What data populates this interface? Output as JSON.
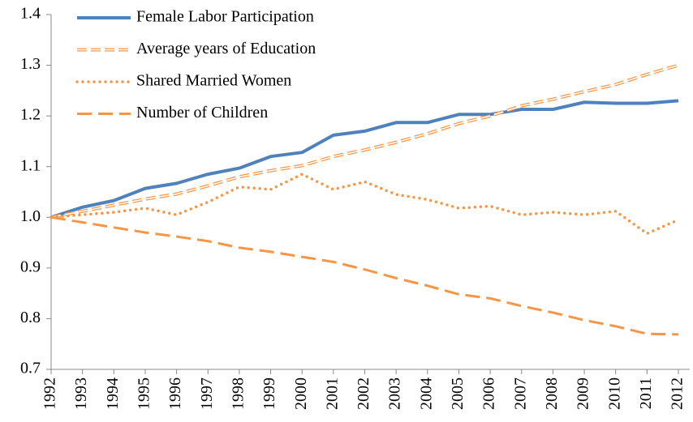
{
  "chart_data": {
    "type": "line",
    "categories": [
      "1992",
      "1993",
      "1994",
      "1995",
      "1996",
      "1997",
      "1998",
      "1999",
      "2000",
      "2001",
      "2002",
      "2003",
      "2004",
      "2005",
      "2006",
      "2007",
      "2008",
      "2009",
      "2010",
      "2011",
      "2012"
    ],
    "ylim": [
      0.7,
      1.4
    ],
    "yticks": [
      0.7,
      0.8,
      0.9,
      {
        "value": 1,
        "label": "1.0"
      },
      1.1,
      1.2,
      1.3,
      1.4
    ],
    "legend": "upper left",
    "series": [
      {
        "name": "Female Labor Participation",
        "color": "#4f81bd",
        "style": "solid",
        "values": [
          1.0,
          1.02,
          1.033,
          1.057,
          1.067,
          1.085,
          1.097,
          1.12,
          1.128,
          1.162,
          1.17,
          1.187,
          1.187,
          1.203,
          1.203,
          1.213,
          1.213,
          1.227,
          1.225,
          1.225,
          1.23
        ]
      },
      {
        "name": "Average years of Education",
        "color": "#f79646",
        "style": "double",
        "values": [
          1.0,
          1.012,
          1.024,
          1.036,
          1.046,
          1.062,
          1.08,
          1.092,
          1.102,
          1.12,
          1.133,
          1.148,
          1.165,
          1.185,
          1.2,
          1.22,
          1.233,
          1.248,
          1.262,
          1.282,
          1.3
        ]
      },
      {
        "name": "Shared Married Women",
        "color": "#f79646",
        "style": "dotted",
        "values": [
          1.0,
          1.005,
          1.01,
          1.018,
          1.005,
          1.03,
          1.06,
          1.055,
          1.085,
          1.055,
          1.07,
          1.045,
          1.035,
          1.018,
          1.022,
          1.005,
          1.01,
          1.005,
          1.012,
          0.968,
          0.995
        ]
      },
      {
        "name": "Number of Children",
        "color": "#f79646",
        "style": "dashed",
        "values": [
          1.0,
          0.99,
          0.98,
          0.97,
          0.962,
          0.953,
          0.94,
          0.932,
          0.922,
          0.912,
          0.897,
          0.88,
          0.865,
          0.848,
          0.84,
          0.825,
          0.812,
          0.797,
          0.785,
          0.77,
          0.769
        ]
      }
    ]
  }
}
